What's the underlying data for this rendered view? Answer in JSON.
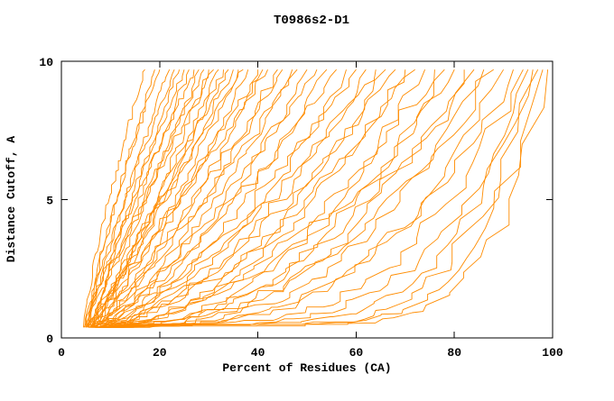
{
  "window": {
    "title": "T0986s2-D1"
  },
  "chart_data": {
    "type": "line",
    "title": "T0986s2-D1",
    "xlabel": "Percent of Residues (CA)",
    "ylabel": "Distance Cutoff, A",
    "xlim": [
      0,
      100
    ],
    "ylim": [
      0,
      10
    ],
    "xticks": [
      0,
      20,
      40,
      60,
      80,
      100
    ],
    "yticks": [
      0,
      5,
      10
    ],
    "grid": false,
    "legend": "none",
    "line_color": "#FF8C00",
    "axis_color": "#000000",
    "background": "#FFFFFF",
    "y_start": 0.38,
    "y_max": 9.7,
    "series_note": "Bundle of ~55 monotonically increasing cumulative-distance model curves (CASP GDT-style plot). Exact per-curve points are not resolvable; each curve is estimated as [x_at_bottom, x_at_top, shape_exponent, seed] with x in percent of residues, rising from y=0.38 A to y=9.7 A.",
    "curves": [
      [
        4.5,
        17,
        0.8,
        11
      ],
      [
        5,
        19,
        0.85,
        12
      ],
      [
        5.5,
        20,
        0.75,
        13
      ],
      [
        4.8,
        22,
        0.9,
        14
      ],
      [
        6,
        23,
        0.8,
        15
      ],
      [
        5.2,
        24,
        0.95,
        16
      ],
      [
        6.5,
        25,
        0.85,
        17
      ],
      [
        5.8,
        26,
        1.0,
        18
      ],
      [
        4.6,
        27,
        0.9,
        19
      ],
      [
        6.2,
        28,
        1.05,
        20
      ],
      [
        5.4,
        29,
        0.95,
        21
      ],
      [
        7,
        30,
        1.1,
        22
      ],
      [
        5,
        31,
        0.9,
        23
      ],
      [
        6.8,
        32,
        1.0,
        24
      ],
      [
        5.6,
        33,
        1.15,
        25
      ],
      [
        7.2,
        34,
        0.95,
        26
      ],
      [
        5.9,
        35,
        1.1,
        27
      ],
      [
        6.4,
        36,
        1.2,
        28
      ],
      [
        5.1,
        37,
        1.0,
        29
      ],
      [
        7.5,
        38,
        1.25,
        30
      ],
      [
        6,
        40,
        1.1,
        31
      ],
      [
        6.6,
        41,
        1.3,
        32
      ],
      [
        5.3,
        42,
        1.05,
        33
      ],
      [
        7.8,
        44,
        1.35,
        34
      ],
      [
        6.1,
        45,
        1.15,
        35
      ],
      [
        6.9,
        47,
        1.4,
        36
      ],
      [
        5.7,
        48,
        1.2,
        37
      ],
      [
        8,
        50,
        1.5,
        38
      ],
      [
        6.3,
        52,
        1.3,
        39
      ],
      [
        7.1,
        54,
        1.6,
        40
      ],
      [
        5.5,
        56,
        1.35,
        41
      ],
      [
        8.2,
        58,
        1.7,
        42
      ],
      [
        6.7,
        60,
        1.45,
        43
      ],
      [
        7.4,
        62,
        1.8,
        44
      ],
      [
        5.9,
        64,
        1.5,
        45
      ],
      [
        8.5,
        66,
        1.9,
        46
      ],
      [
        7,
        68,
        1.6,
        47
      ],
      [
        7.7,
        70,
        2.0,
        48
      ],
      [
        6.2,
        72,
        1.7,
        49
      ],
      [
        8.8,
        74,
        2.2,
        50
      ],
      [
        7.3,
        76,
        1.9,
        51
      ],
      [
        8,
        78,
        2.4,
        52
      ],
      [
        6.5,
        80,
        2.0,
        53
      ],
      [
        9,
        82,
        2.6,
        54
      ],
      [
        7.6,
        84,
        2.2,
        55
      ],
      [
        8.4,
        86,
        2.8,
        56
      ],
      [
        6.8,
        88,
        2.4,
        57
      ],
      [
        9.5,
        90,
        3.2,
        58
      ],
      [
        8.6,
        92,
        2.9,
        59
      ],
      [
        9.2,
        94,
        3.6,
        60
      ],
      [
        10,
        95,
        4.2,
        61
      ],
      [
        11,
        96,
        5.0,
        62
      ],
      [
        10.5,
        97,
        5.8,
        63
      ],
      [
        12,
        98,
        6.6,
        64
      ],
      [
        11.5,
        99,
        7.5,
        65
      ]
    ]
  }
}
